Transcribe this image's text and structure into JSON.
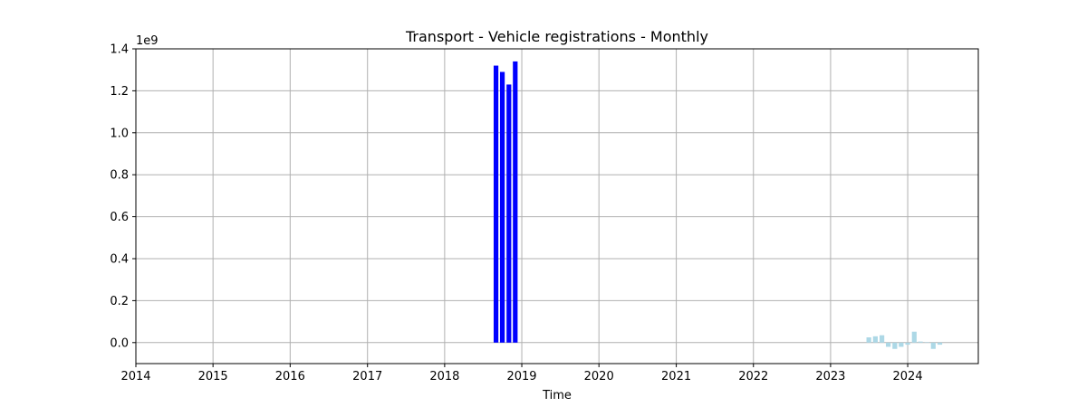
{
  "chart_data": {
    "type": "bar",
    "title": "Transport - Vehicle registrations - Monthly",
    "xlabel": "Time",
    "ylabel": "",
    "y_scale_label": "1e9",
    "xlim": [
      "2014-01-01",
      "2024-11-30"
    ],
    "ylim": [
      -0.1,
      1.4
    ],
    "y_unit_multiplier": 1000000000,
    "x_ticks": [
      "2014",
      "2015",
      "2016",
      "2017",
      "2018",
      "2019",
      "2020",
      "2021",
      "2022",
      "2023",
      "2024"
    ],
    "y_ticks": [
      "0.0",
      "0.2",
      "0.4",
      "0.6",
      "0.8",
      "1.0",
      "1.2",
      "1.4"
    ],
    "grid": true,
    "series": [
      {
        "color": "#0000ff",
        "points": [
          {
            "x": "2018-09",
            "y": 1.32
          },
          {
            "x": "2018-10",
            "y": 1.29
          },
          {
            "x": "2018-11",
            "y": 1.23
          },
          {
            "x": "2018-12",
            "y": 1.34
          }
        ]
      },
      {
        "color": "#add8e6",
        "points": [
          {
            "x": "2023-07",
            "y": 0.025
          },
          {
            "x": "2023-08",
            "y": 0.03
          },
          {
            "x": "2023-09",
            "y": 0.035
          },
          {
            "x": "2023-10",
            "y": -0.02
          },
          {
            "x": "2023-11",
            "y": -0.03
          },
          {
            "x": "2023-12",
            "y": -0.02
          },
          {
            "x": "2024-01",
            "y": -0.01
          },
          {
            "x": "2024-02",
            "y": 0.052
          },
          {
            "x": "2024-03",
            "y": 0.005
          },
          {
            "x": "2024-04",
            "y": 0.002
          },
          {
            "x": "2024-05",
            "y": -0.03
          },
          {
            "x": "2024-06",
            "y": -0.01
          }
        ]
      }
    ]
  }
}
